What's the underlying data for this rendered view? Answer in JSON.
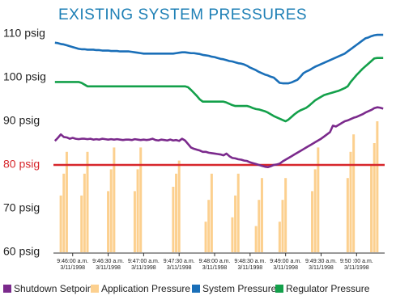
{
  "chart_data": {
    "type": "line",
    "title": "EXISTING SYSTEM PRESSURES",
    "ylim": [
      60,
      110
    ],
    "yticks": [
      {
        "value": 60,
        "label": "60 psig"
      },
      {
        "value": 70,
        "label": "70 psig"
      },
      {
        "value": 80,
        "label": "80 psig"
      },
      {
        "value": 90,
        "label": "90 psig"
      },
      {
        "value": 100,
        "label": "100 psig"
      },
      {
        "value": 110,
        "label": "110 psig"
      }
    ],
    "reference_line": {
      "value": 80,
      "color": "#d7262b"
    },
    "categories": [
      null,
      null,
      null,
      null,
      null,
      null,
      [
        "9:46:00 a.m.",
        "3/11/1998"
      ],
      null,
      null,
      null,
      null,
      null,
      null,
      null,
      null,
      null,
      null,
      null,
      [
        "9:46:30 a.m.",
        "3/11/1998"
      ],
      null,
      null,
      null,
      null,
      null,
      null,
      null,
      null,
      null,
      null,
      null,
      [
        "9:47:00 a.m.",
        "3/11/1998"
      ],
      null,
      null,
      null,
      null,
      null,
      null,
      null,
      null,
      null,
      null,
      null,
      [
        "9:47:30 a.m.",
        "3/11/1998"
      ],
      null,
      null,
      null,
      null,
      null,
      null,
      null,
      null,
      null,
      null,
      null,
      [
        "9:48:00 a.m.",
        "3/11/1998"
      ],
      null,
      null,
      null,
      null,
      null,
      null,
      null,
      null,
      null,
      null,
      null,
      [
        "9:48:30 a.m.",
        "3/11/1998"
      ],
      null,
      null,
      null,
      null,
      null,
      null,
      null,
      null,
      null,
      null,
      null,
      [
        "9:49:00 a.m.",
        "3/11/1998"
      ],
      null,
      null,
      null,
      null,
      null,
      null,
      null,
      null,
      null,
      null,
      null,
      [
        "9:49:30 a.m.",
        "3/11/1998"
      ],
      null,
      null,
      null,
      null,
      null,
      null,
      null,
      null,
      null,
      null,
      null,
      [
        "9:50 :00 a.m.",
        "3/11/1998"
      ],
      null,
      null,
      null,
      null,
      null,
      null,
      null,
      null,
      null
    ],
    "series": [
      {
        "name": "Shutdown Setpoint",
        "color": "#7b2a8c",
        "type": "line",
        "values": [
          85.5,
          86.2,
          87,
          86.4,
          86.3,
          86,
          86.2,
          86,
          85.9,
          86,
          86,
          85.9,
          86,
          85.8,
          85.9,
          85.8,
          86,
          85.9,
          85.8,
          85.9,
          85.8,
          85.9,
          85.8,
          85.7,
          85.8,
          85.8,
          85.7,
          85.9,
          85.8,
          85.7,
          85.8,
          85.7,
          85.8,
          86,
          85.7,
          85.6,
          85.8,
          85.7,
          85.6,
          85.8,
          85.6,
          85.7,
          85.5,
          86,
          85.6,
          84.8,
          84,
          83.7,
          83.5,
          83.3,
          83,
          83,
          82.8,
          82.7,
          82.6,
          82.5,
          82.4,
          82.2,
          82.6,
          82,
          81.6,
          81.5,
          81.3,
          81.2,
          81,
          80.9,
          80.6,
          80.4,
          80.2,
          80,
          79.8,
          79.6,
          79.5,
          79.7,
          80,
          80.1,
          80.3,
          80.8,
          81.2,
          81.6,
          82,
          82.4,
          82.8,
          83.2,
          83.6,
          84,
          84.4,
          84.8,
          85.2,
          85.6,
          86,
          86.5,
          87,
          87.5,
          89,
          88.8,
          89.2,
          89.6,
          90,
          90.2,
          90.5,
          90.8,
          91,
          91.3,
          91.6,
          92,
          92.3,
          92.6,
          93,
          93.2,
          93.1,
          92.9
        ]
      },
      {
        "name": "Application Pressure",
        "color": "#fcd08f",
        "type": "bar",
        "values": [
          null,
          null,
          73,
          78,
          83,
          null,
          null,
          null,
          null,
          73,
          78,
          83,
          null,
          null,
          null,
          null,
          null,
          null,
          74,
          79,
          84,
          null,
          null,
          null,
          null,
          null,
          null,
          74,
          79,
          84,
          null,
          null,
          null,
          null,
          null,
          null,
          null,
          null,
          null,
          null,
          75,
          78,
          81,
          null,
          null,
          null,
          null,
          null,
          null,
          null,
          null,
          67,
          72,
          78,
          null,
          null,
          null,
          null,
          null,
          null,
          68,
          73,
          78,
          null,
          null,
          null,
          null,
          null,
          66,
          72,
          77,
          null,
          null,
          null,
          null,
          null,
          67,
          72,
          77,
          null,
          null,
          null,
          null,
          null,
          null,
          null,
          null,
          74,
          79,
          84,
          null,
          null,
          null,
          null,
          null,
          null,
          null,
          null,
          null,
          77,
          83,
          87,
          null,
          null,
          null,
          null,
          null,
          80,
          85,
          90,
          null,
          null
        ]
      },
      {
        "name": "System Pressure",
        "color": "#1a6fb8",
        "type": "line",
        "values": [
          108,
          107.9,
          107.7,
          107.6,
          107.4,
          107.2,
          107,
          106.8,
          106.6,
          106.5,
          106.5,
          106.4,
          106.4,
          106.4,
          106.3,
          106.3,
          106.2,
          106.2,
          106.2,
          106.1,
          106.1,
          106.1,
          106,
          106,
          106,
          106,
          105.9,
          105.8,
          105.7,
          105.6,
          105.5,
          105.5,
          105.5,
          105.5,
          105.5,
          105.5,
          105.5,
          105.5,
          105.5,
          105.5,
          105.5,
          105.6,
          105.7,
          105.8,
          105.8,
          105.7,
          105.6,
          105.6,
          105.5,
          105.4,
          105.2,
          105.1,
          105,
          104.8,
          104.7,
          104.5,
          104.3,
          104.2,
          104,
          103.8,
          103.7,
          103.5,
          103.3,
          103.2,
          103,
          102.7,
          102.3,
          102,
          101.7,
          101.3,
          101,
          100.7,
          100.5,
          100.2,
          100,
          99.4,
          98.8,
          98.7,
          98.7,
          98.7,
          98.9,
          99.2,
          99.5,
          100.2,
          101,
          101.4,
          101.7,
          102.1,
          102.5,
          102.8,
          103.1,
          103.4,
          103.7,
          104,
          104.3,
          104.6,
          104.9,
          105.2,
          105.5,
          106,
          106.5,
          107,
          107.5,
          108,
          108.5,
          109,
          109.2,
          109.5,
          109.7,
          109.8,
          109.8,
          109.8
        ]
      },
      {
        "name": "Regulator Pressure",
        "color": "#13a04a",
        "type": "line",
        "values": [
          99,
          99,
          99,
          99,
          99,
          99,
          99,
          99,
          99,
          98.8,
          98.4,
          98,
          98,
          98,
          98,
          98,
          98,
          98,
          98,
          98,
          98,
          98,
          98,
          98,
          98,
          98,
          98,
          98,
          98,
          98,
          98,
          98,
          98,
          98,
          98,
          98,
          98,
          98,
          98,
          98,
          98,
          98,
          98,
          98,
          98,
          97.8,
          97.2,
          96.5,
          95.8,
          95,
          94.5,
          94.5,
          94.5,
          94.5,
          94.5,
          94.5,
          94.5,
          94.5,
          94.3,
          94,
          93.7,
          93.5,
          93.5,
          93.5,
          93.5,
          93.5,
          93.3,
          93,
          92.8,
          92.7,
          92.5,
          92.3,
          92,
          91.6,
          91.2,
          90.9,
          90.6,
          90.3,
          90,
          90.4,
          91,
          91.6,
          92.1,
          92.5,
          92.8,
          93.1,
          93.6,
          94.2,
          94.8,
          95.2,
          95.6,
          96,
          96.2,
          96.4,
          96.6,
          96.8,
          97,
          97.3,
          97.6,
          98,
          99,
          99.8,
          100.6,
          101.3,
          102,
          102.6,
          103.2,
          103.8,
          104.4,
          104.5,
          104.5,
          104.5
        ]
      }
    ]
  }
}
